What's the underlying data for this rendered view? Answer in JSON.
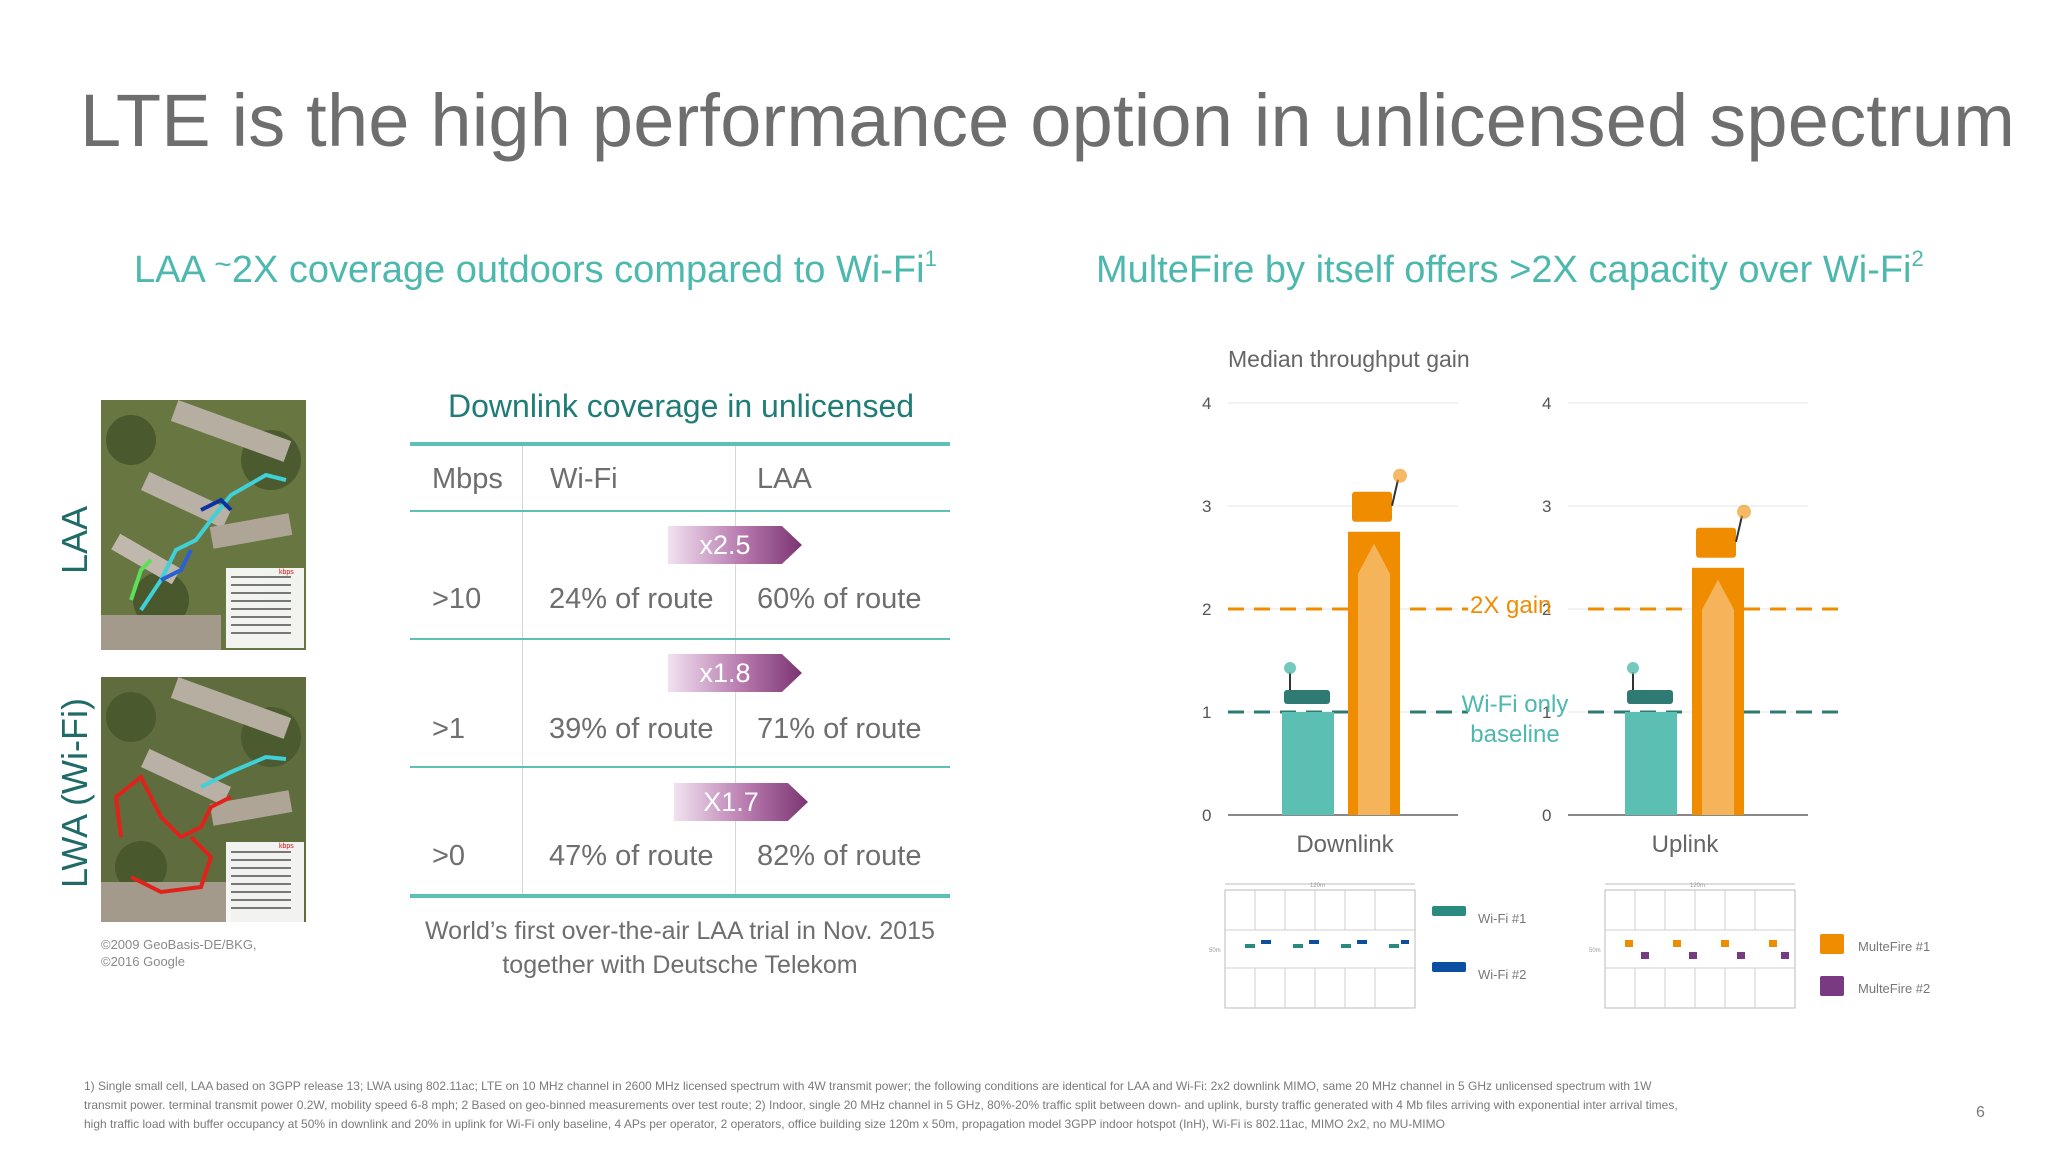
{
  "slide": {
    "title": "LTE is the high performance option in unlicensed spectrum",
    "page_number": "6"
  },
  "left": {
    "subtitle_pre": "LAA ",
    "subtitle_tilde": "~",
    "subtitle_main": "2X coverage outdoors compared to Wi-Fi",
    "subtitle_sup": "1",
    "label_top": "LAA",
    "label_bottom": "LWA (Wi-Fi)",
    "copyright_line1": "©2009 GeoBasis-DE/BKG,",
    "copyright_line2": "©2016 Google",
    "map_legend_top": "kbps",
    "map_legend_bottom": "kbps",
    "table": {
      "title": "Downlink coverage in unlicensed",
      "headers": [
        "Mbps",
        "Wi-Fi",
        "LAA"
      ],
      "rows": [
        {
          "mbps": ">10",
          "wifi": "24% of route",
          "laa": "60% of route",
          "gain": "x2.5"
        },
        {
          "mbps": ">1",
          "wifi": "39% of route",
          "laa": "71% of route",
          "gain": "x1.8"
        },
        {
          "mbps": ">0",
          "wifi": "47% of route",
          "laa": "82% of route",
          "gain": "X1.7"
        }
      ],
      "gain_color": "#7a3572"
    },
    "caption_line1": "World’s first over-the-air LAA trial in Nov. 2015",
    "caption_line2": "together with Deutsche Telekom"
  },
  "right": {
    "subtitle_main": "MulteFire by itself offers >2X capacity over Wi-Fi",
    "subtitle_sup": "2",
    "gain_label": "2X gain",
    "baseline_label_1": "Wi-Fi only",
    "baseline_label_2": "baseline",
    "legend": {
      "wifi1": "Wi-Fi #1",
      "wifi2": "Wi-Fi #2",
      "mf1": "MulteFire #1",
      "mf2": "MulteFire #2",
      "dim_width": "120m",
      "dim_height": "50m"
    },
    "colors": {
      "wifi": "#5bbfb3",
      "multefire": "#f08c00",
      "wifi2": "#0b4fa3",
      "mf2": "#7a3a82",
      "gain_line": "#f08c00",
      "baseline_line": "#2f7b73"
    }
  },
  "chart_data": {
    "type": "bar",
    "title": "Median throughput gain",
    "ylim": [
      0,
      4
    ],
    "yticks": [
      0,
      1,
      2,
      3,
      4
    ],
    "categories": [
      "Downlink",
      "Uplink"
    ],
    "series": [
      {
        "name": "Wi-Fi",
        "values": [
          1.0,
          1.0
        ]
      },
      {
        "name": "MulteFire",
        "values": [
          2.75,
          2.4
        ]
      }
    ],
    "reference_lines": [
      {
        "label": "2X gain",
        "value": 2
      },
      {
        "label": "Wi-Fi only baseline",
        "value": 1
      }
    ]
  },
  "footnote": {
    "line1": "1) Single small cell, LAA based on 3GPP release 13; LWA using 802.11ac; LTE on 10 MHz channel in 2600 MHz licensed spectrum with 4W transmit power; the following conditions are identical for LAA and Wi-Fi: 2x2 downlink MIMO, same 20 MHz channel in 5 GHz unlicensed spectrum with 1W",
    "line2": "transmit power. terminal transmit power 0.2W, mobility speed 6-8 mph; 2 Based on geo-binned measurements over test route; 2) Indoor, single 20 MHz channel in 5 GHz, 80%-20% traffic split between down- and uplink, bursty traffic generated with 4 Mb files arriving with exponential inter arrival times,",
    "line3": "high traffic load with buffer occupancy at 50% in downlink and 20% in uplink for Wi-Fi only baseline, 4 APs per operator, 2 operators, office building size 120m x 50m, propagation model 3GPP indoor hotspot (InH), Wi-Fi is 802.11ac, MIMO 2x2,  no MU-MIMO"
  }
}
